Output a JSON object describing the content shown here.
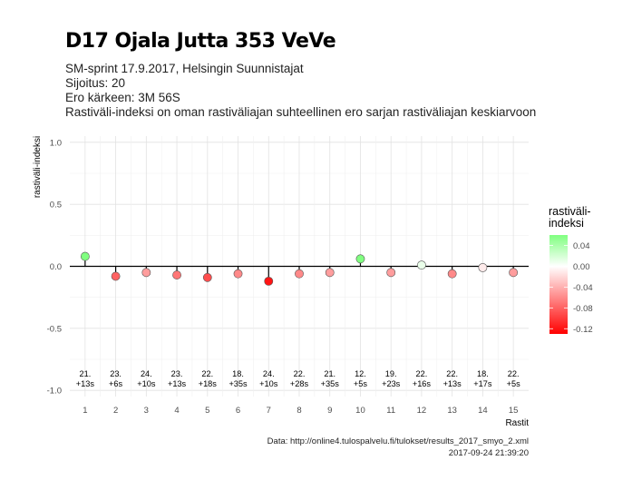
{
  "title": "D17 Ojala Jutta 353 VeVe",
  "subtitle_lines": [
    "SM-sprint 17.9.2017, Helsingin Suunnistajat",
    "Sijoitus: 20",
    "Ero kärkeen: 3M 56S",
    "Rastiväli-indeksi on oman rastiväliajan suhteellinen ero sarjan rastiväliajan keskiarvoon"
  ],
  "caption": {
    "source": "Data: http://online4.tulospalvelu.fi/tulokset/results_2017_smyo_2.xml",
    "timestamp": "2017-09-24 21:39:20"
  },
  "legend_title": "rastiväli-\nindeksi",
  "colors": {
    "low": "#ff0000",
    "mid": "#ffffff",
    "high": "#80ff80"
  },
  "chart_data": {
    "type": "scatter",
    "xlabel": "Rastit",
    "ylabel": "rastiväli-indeksi",
    "ylim": [
      -1.05,
      1.05
    ],
    "yticks": [
      -1.0,
      -0.5,
      0.0,
      0.5,
      1.0
    ],
    "ytick_labels": [
      "-1.0",
      "-0.5",
      "0.0",
      "0.5",
      "1.0"
    ],
    "x": [
      1,
      2,
      3,
      4,
      5,
      6,
      7,
      8,
      9,
      10,
      11,
      12,
      13,
      14,
      15
    ],
    "values": [
      0.08,
      -0.08,
      -0.05,
      -0.07,
      -0.09,
      -0.06,
      -0.12,
      -0.06,
      -0.05,
      0.06,
      -0.05,
      0.01,
      -0.06,
      -0.01,
      -0.05
    ],
    "annotations_rank": [
      "21.",
      "23.",
      "24.",
      "23.",
      "22.",
      "18.",
      "24.",
      "22.",
      "21.",
      "12.",
      "19.",
      "22.",
      "22.",
      "18.",
      "22."
    ],
    "annotations_diff": [
      "+13s",
      "+6s",
      "+10s",
      "+13s",
      "+18s",
      "+35s",
      "+10s",
      "+28s",
      "+35s",
      "+5s",
      "+23s",
      "+16s",
      "+13s",
      "+17s",
      "+5s"
    ],
    "grid": true,
    "legend": {
      "placement": "right",
      "range": [
        -0.13,
        0.06
      ],
      "ticks": [
        0.04,
        0.0,
        -0.04,
        -0.08,
        -0.12
      ],
      "tick_labels": [
        "0.04",
        "0.00",
        "-0.04",
        "-0.08",
        "-0.12"
      ]
    }
  }
}
